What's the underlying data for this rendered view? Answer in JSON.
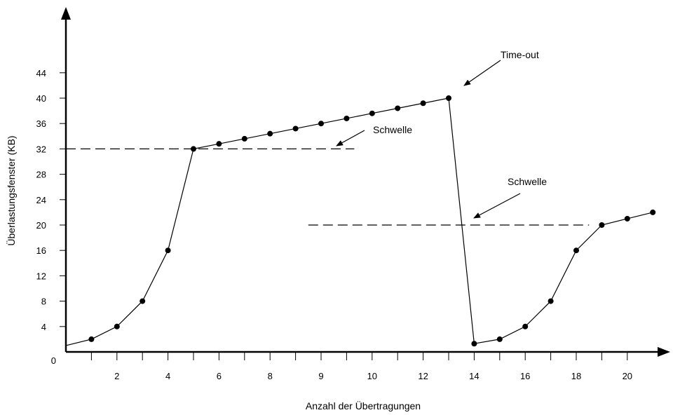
{
  "chart_data": {
    "type": "line",
    "xlabel": "Anzahl der Übertragungen",
    "ylabel": "Überlastungsfenster (KB)",
    "x_tick_labels": [
      "2",
      "4",
      "6",
      "8",
      "9",
      "10",
      "12",
      "14",
      "16",
      "18",
      "20"
    ],
    "y_tick_labels": [
      "0",
      "4",
      "8",
      "12",
      "16",
      "20",
      "24",
      "28",
      "32",
      "36",
      "40",
      "44"
    ],
    "xlim": [
      0,
      23
    ],
    "ylim": [
      0,
      54
    ],
    "grid": false,
    "series": [
      {
        "x": [
          0,
          1,
          2,
          3,
          4,
          5,
          6,
          7,
          8,
          9,
          10,
          11,
          12,
          13,
          14,
          15,
          16,
          17,
          18,
          19,
          20,
          21,
          22,
          23
        ],
        "y": [
          1,
          2,
          4,
          8,
          16,
          32,
          32.8,
          33.6,
          34.4,
          35.2,
          36,
          36.8,
          37.6,
          38.4,
          39.2,
          40,
          1.3,
          2,
          4,
          8,
          16,
          20,
          21,
          22
        ],
        "markers_from_index": 1
      }
    ],
    "thresholds": [
      {
        "label": "Schwelle",
        "y": 32,
        "x_from": 0,
        "x_to": 11.3
      },
      {
        "label": "Schwelle",
        "y": 20,
        "x_from": 9.5,
        "x_to": 20.5
      }
    ],
    "annotations": [
      {
        "text": "Time-out"
      },
      {
        "text": "Schwelle"
      },
      {
        "text": "Schwelle"
      }
    ]
  }
}
